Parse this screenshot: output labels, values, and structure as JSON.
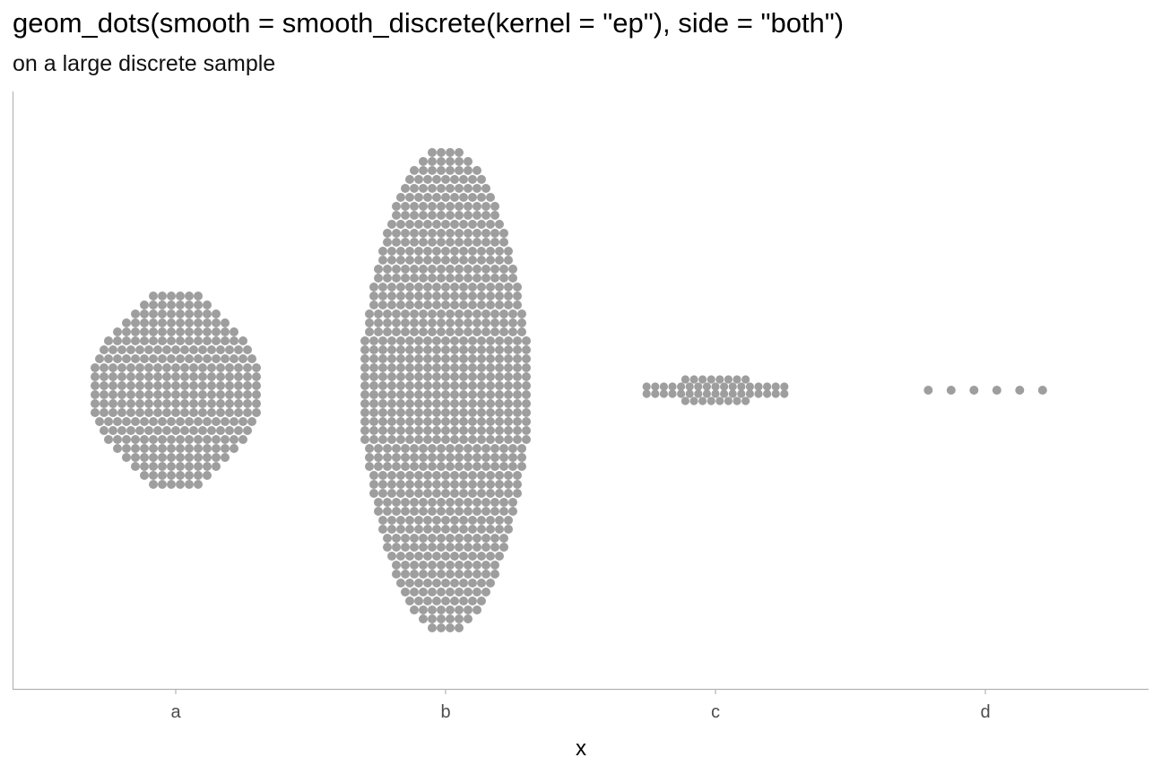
{
  "title": "geom_dots(smooth = smooth_discrete(kernel = \"ep\"), side = \"both\")",
  "subtitle": "on a large discrete sample",
  "chart_data": {
    "type": "dotplot",
    "categories": [
      "a",
      "b",
      "c",
      "d"
    ],
    "xlabel": "x",
    "ylabel": "",
    "side": "both",
    "dot_color": "#9e9e9e",
    "axis_color": "#b3b3b3",
    "grid": false,
    "groups": [
      {
        "category": "a",
        "row_counts": [
          6,
          8,
          10,
          12,
          14,
          16,
          17,
          18,
          19,
          19,
          19,
          19,
          19,
          19,
          18,
          17,
          16,
          14,
          12,
          10,
          8,
          6
        ]
      },
      {
        "category": "b",
        "row_counts": [
          4,
          6,
          8,
          9,
          10,
          11,
          12,
          12,
          13,
          14,
          14,
          15,
          15,
          16,
          16,
          17,
          17,
          17,
          18,
          18,
          18,
          19,
          19,
          19,
          19,
          19,
          19,
          19,
          19,
          19,
          19,
          19,
          19,
          18,
          18,
          18,
          17,
          17,
          17,
          16,
          16,
          15,
          15,
          14,
          14,
          13,
          12,
          12,
          11,
          10,
          9,
          8,
          6,
          4
        ]
      },
      {
        "category": "c",
        "row_counts": [
          8,
          17,
          17,
          8
        ]
      },
      {
        "category": "d",
        "row_counts": [
          6
        ]
      }
    ]
  }
}
